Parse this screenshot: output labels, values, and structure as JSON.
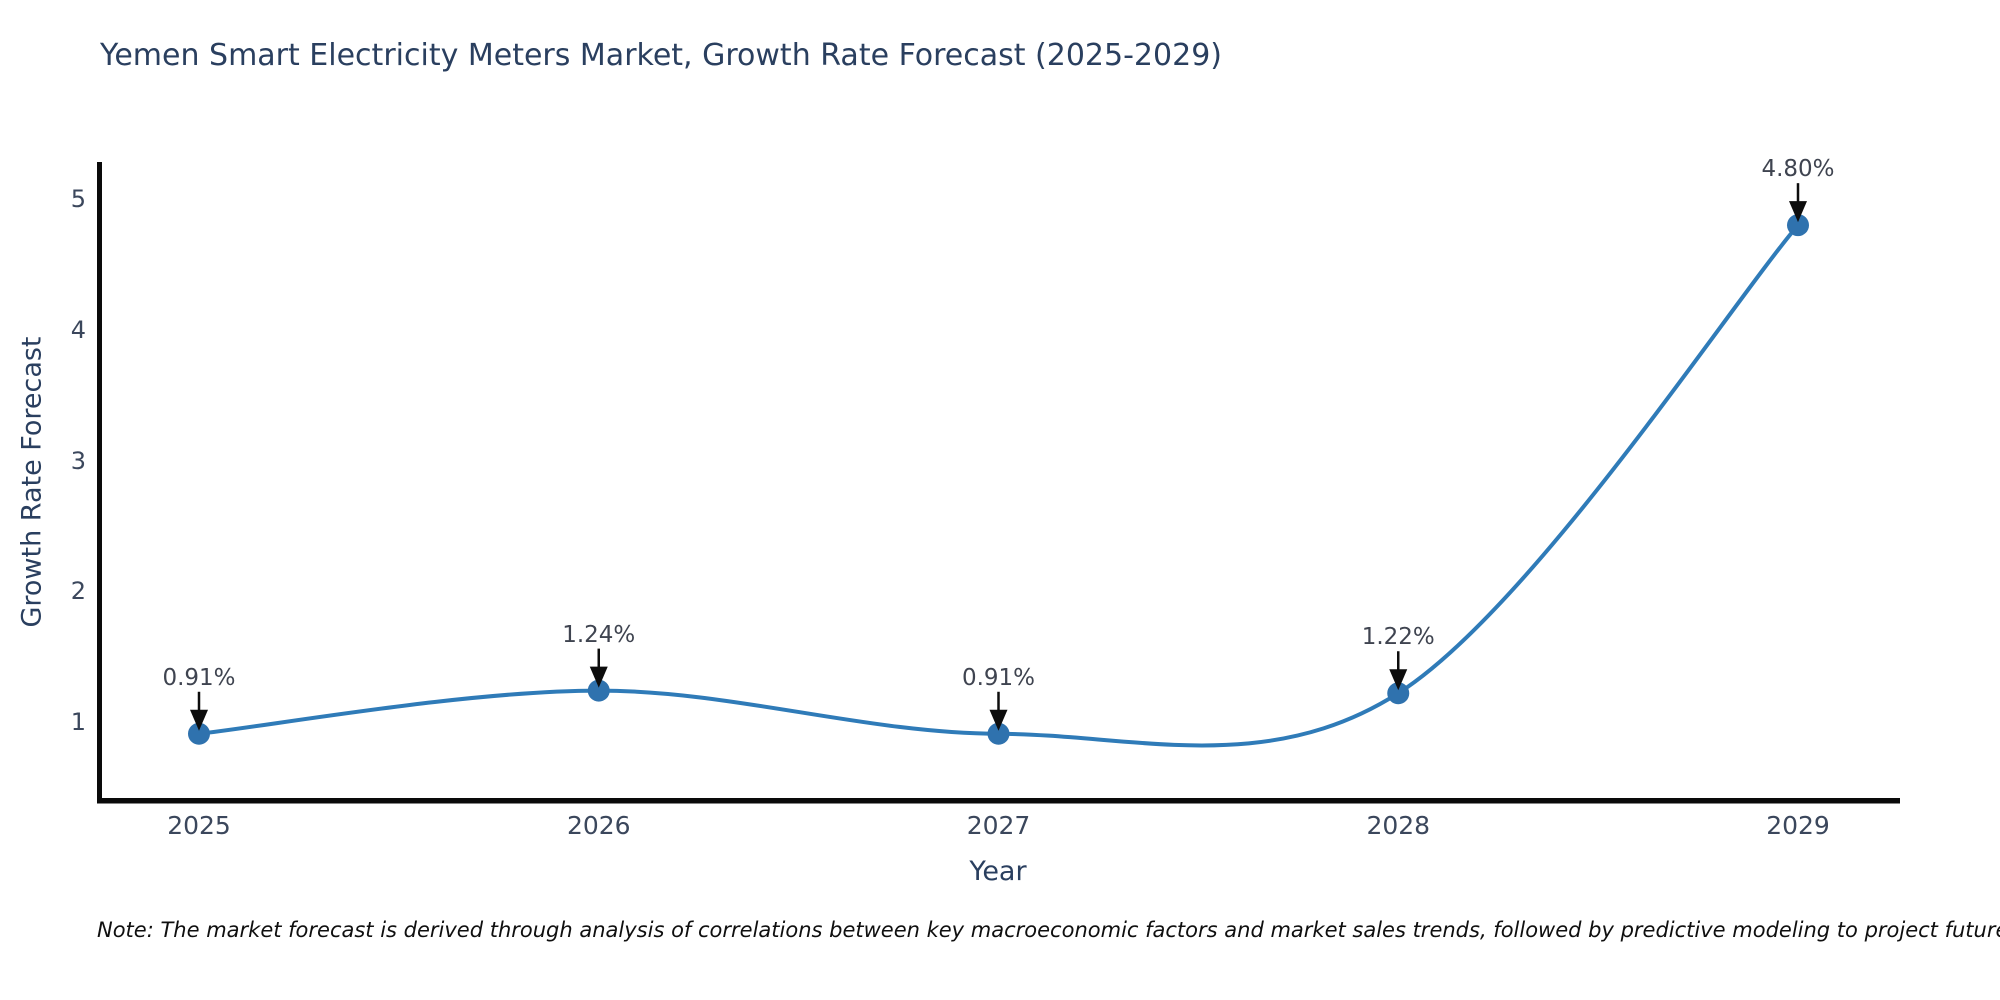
{
  "chart_data": {
    "type": "line",
    "title": "Yemen Smart Electricity Meters Market, Growth Rate Forecast (2025-2029)",
    "xlabel": "Year",
    "ylabel": "Growth Rate Forecast",
    "categories": [
      "2025",
      "2026",
      "2027",
      "2028",
      "2029"
    ],
    "values": [
      0.91,
      1.24,
      0.91,
      1.22,
      4.8
    ],
    "point_labels": [
      "0.91%",
      "1.24%",
      "0.91%",
      "1.22%",
      "4.80%"
    ],
    "yticks": [
      "1",
      "2",
      "3",
      "4",
      "5"
    ],
    "ytick_values": [
      1,
      2,
      3,
      4,
      5
    ],
    "ylim": [
      0.4,
      5.3
    ],
    "grid": false,
    "legend": "none",
    "line_color": "#2f7bb8",
    "marker_color": "#2f72ae",
    "axis_color": "#0a0a0a",
    "arrow_color": "#0d0d0d",
    "note": "Note: The market forecast is derived through analysis of correlations between key macroeconomic factors and market sales trends, followed by predictive modeling to project future sales."
  }
}
